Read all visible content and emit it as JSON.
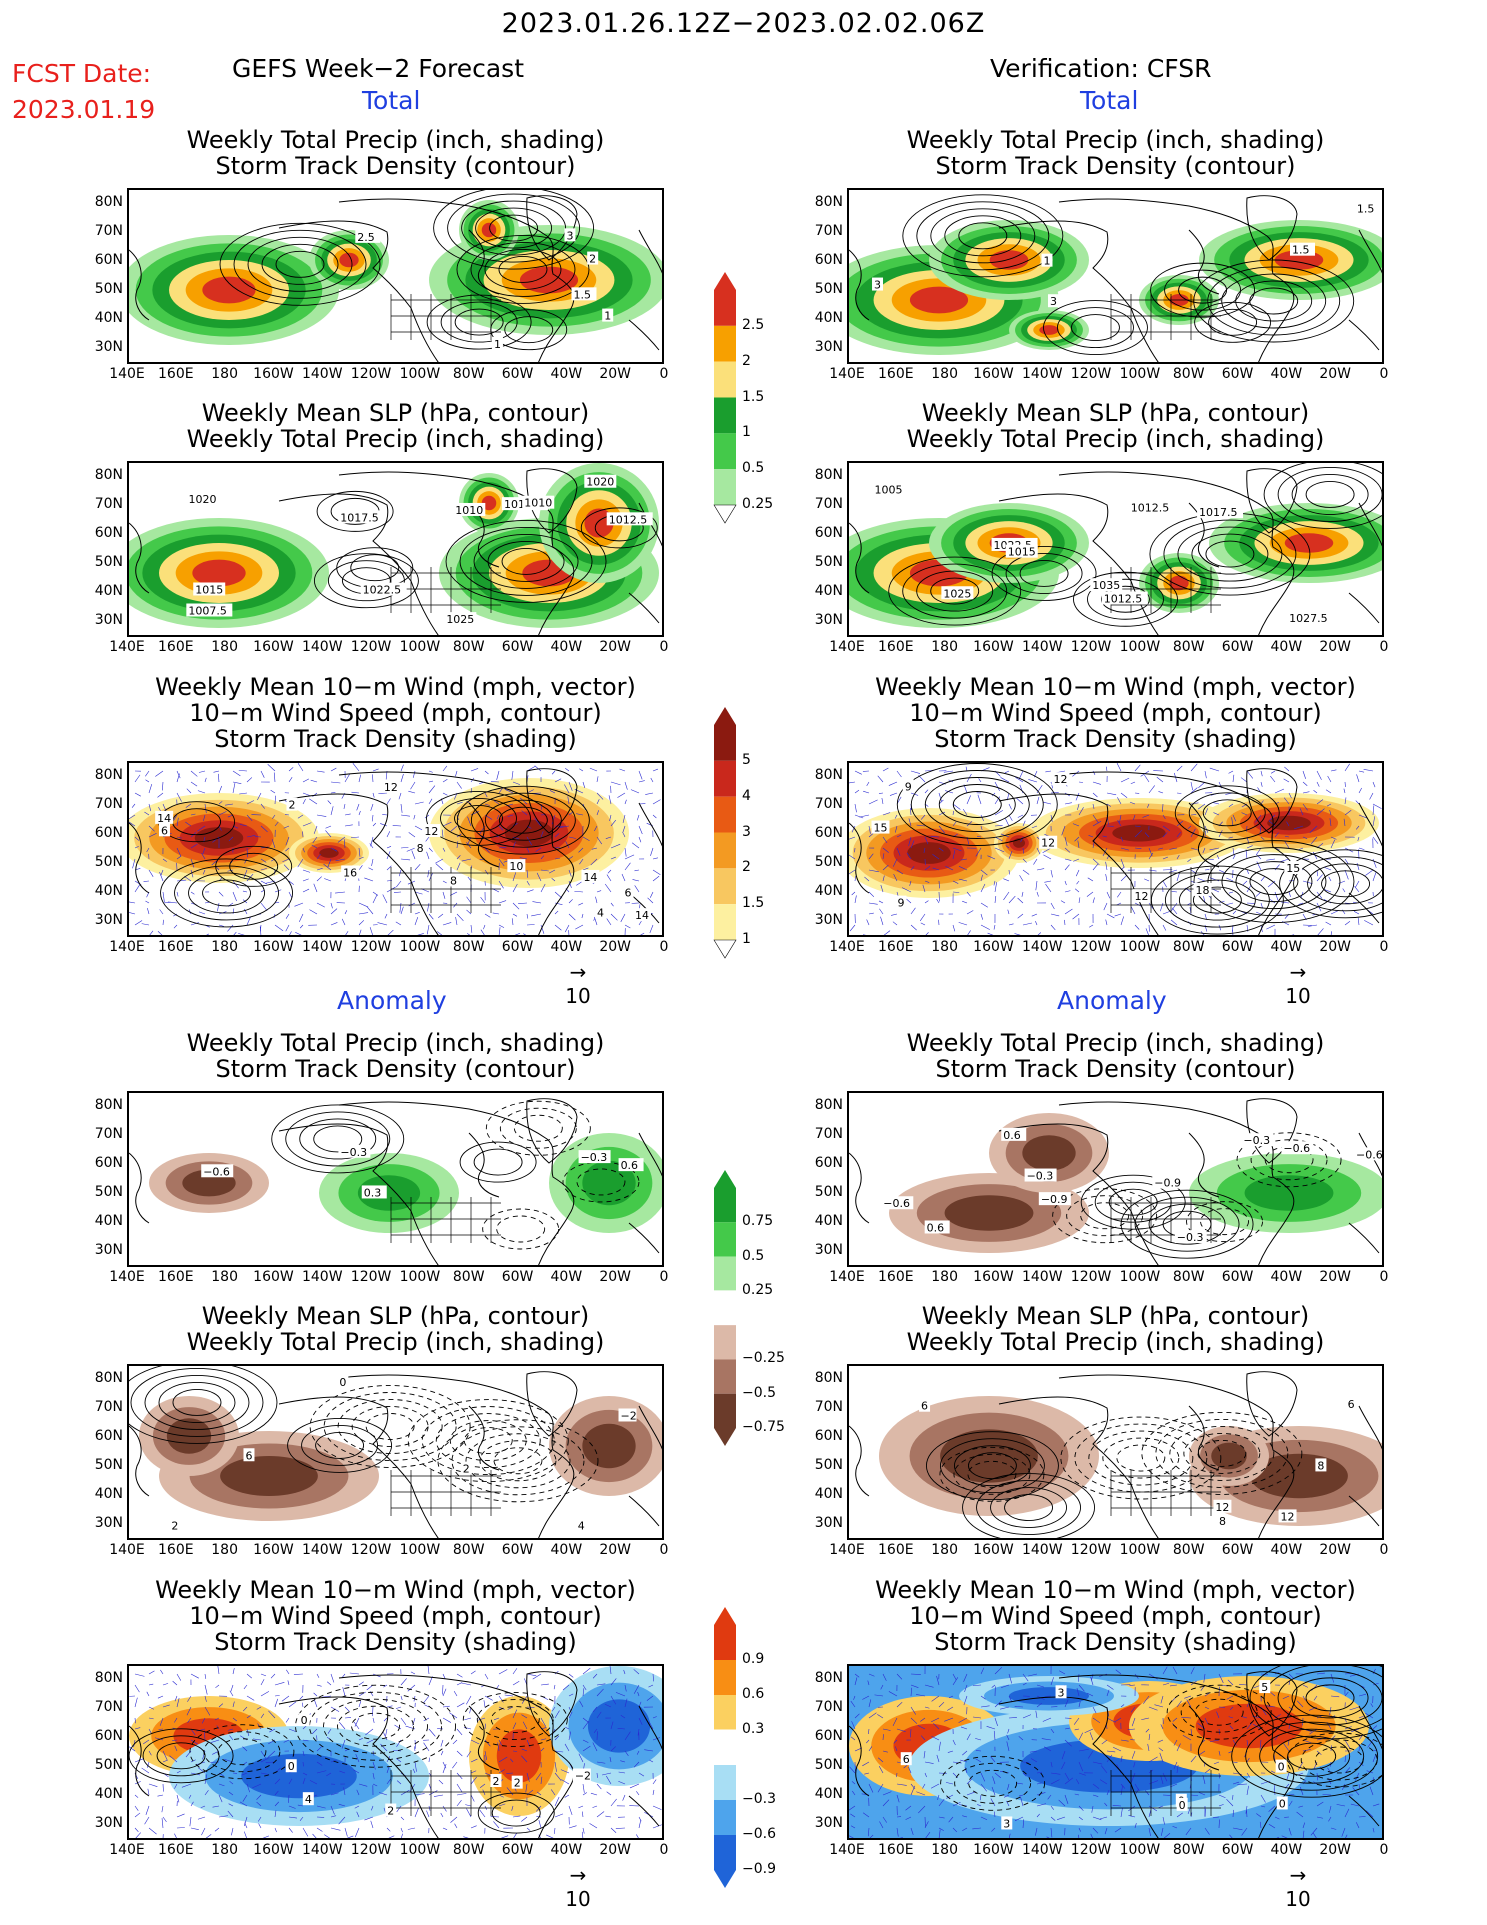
{
  "header": {
    "period": "2023.01.26.12Z−2023.02.02.06Z",
    "fcst_label": "FCST Date:",
    "fcst_date": "2023.01.19",
    "left_title": "GEFS Week−2 Forecast",
    "right_title": "Verification: CFSR"
  },
  "sections": {
    "total": "Total",
    "anomaly": "Anomaly"
  },
  "panel_titles": {
    "precip": [
      "Weekly Total Precip (inch, shading)",
      "Storm Track Density (contour)"
    ],
    "slp": [
      "Weekly Mean SLP (hPa, contour)",
      "Weekly Total Precip (inch, shading)"
    ],
    "wind": [
      "Weekly Mean 10−m Wind (mph, vector)",
      "10−m Wind Speed (mph, contour)",
      "Storm Track Density (shading)"
    ]
  },
  "axes": {
    "lat_labels": [
      "80N",
      "70N",
      "60N",
      "50N",
      "40N",
      "30N"
    ],
    "lon_labels": [
      "140E",
      "160E",
      "180",
      "160W",
      "140W",
      "120W",
      "100W",
      "80W",
      "60W",
      "40W",
      "20W",
      "0"
    ]
  },
  "vector_ref": "10",
  "colorbars": {
    "precip_total": {
      "labels": [
        "2.5",
        "2",
        "1.5",
        "1",
        "0.5",
        "0.25"
      ],
      "colors": [
        "#d7301f",
        "#f7a000",
        "#fbe07a",
        "#1a9e2e",
        "#44c94a",
        "#a6e8a0"
      ]
    },
    "std_total": {
      "labels": [
        "5",
        "4",
        "3",
        "2",
        "1.5",
        "1"
      ],
      "colors": [
        "#8b1a10",
        "#c9281c",
        "#e85a14",
        "#f39a22",
        "#f8c760",
        "#fdf0a0"
      ]
    },
    "precip_anom": {
      "labels": [
        "0.75",
        "0.5",
        "0.25",
        "−0.25",
        "−0.5",
        "−0.75"
      ],
      "colors": [
        "#1a9e2e",
        "#44c94a",
        "#a6e8a0",
        "#ffffff",
        "#dcb9a8",
        "#a87563",
        "#6b3b2a"
      ]
    },
    "std_anom": {
      "labels": [
        "0.9",
        "0.6",
        "0.3",
        "−0.3",
        "−0.6",
        "−0.9"
      ],
      "colors": [
        "#e03a10",
        "#f88e14",
        "#fbd060",
        "#ffffff",
        "#a8def4",
        "#4ea4ec",
        "#1f64d8"
      ]
    }
  },
  "contour_labels": {
    "l1": [
      "1",
      "1.5",
      "3",
      "2",
      "2.5",
      "1"
    ],
    "r1": [
      "1.5",
      "3",
      "3",
      "1.5",
      "1"
    ],
    "l2": [
      "1025",
      "1017.5",
      "1012.5",
      "1020",
      "1007.5",
      "1010",
      "1012.5",
      "1015",
      "1020",
      "1022.5",
      "1010"
    ],
    "r2": [
      "1017.5",
      "1012.5",
      "1035",
      "1027.5",
      "1005",
      "1025",
      "1022.5",
      "1012.5",
      "1015"
    ],
    "l3": [
      "2",
      "4",
      "6",
      "14",
      "10",
      "8",
      "12",
      "14",
      "8",
      "16",
      "14",
      "12",
      "6"
    ],
    "r3": [
      "12",
      "9",
      "12",
      "15",
      "18",
      "9",
      "15",
      "12"
    ],
    "l4": [
      "0.6",
      "0.3",
      "−0.6",
      "−0.3",
      "−0.3"
    ],
    "r4": [
      "−0.6",
      "−0.9",
      "−0.3",
      "−0.6",
      "−0.3",
      "−0.6",
      "−0.3",
      "0.6",
      "−0.9",
      "0.6"
    ],
    "l5": [
      "2",
      "−2",
      "6",
      "4",
      "2",
      "0"
    ],
    "r5": [
      "12",
      "6",
      "8",
      "12",
      "6",
      "8"
    ],
    "l6": [
      "4",
      "2",
      "0",
      "−2",
      "2",
      "0",
      "2"
    ],
    "r6": [
      "3",
      "0",
      "5",
      "0",
      "0",
      "0",
      "3",
      "6"
    ]
  }
}
